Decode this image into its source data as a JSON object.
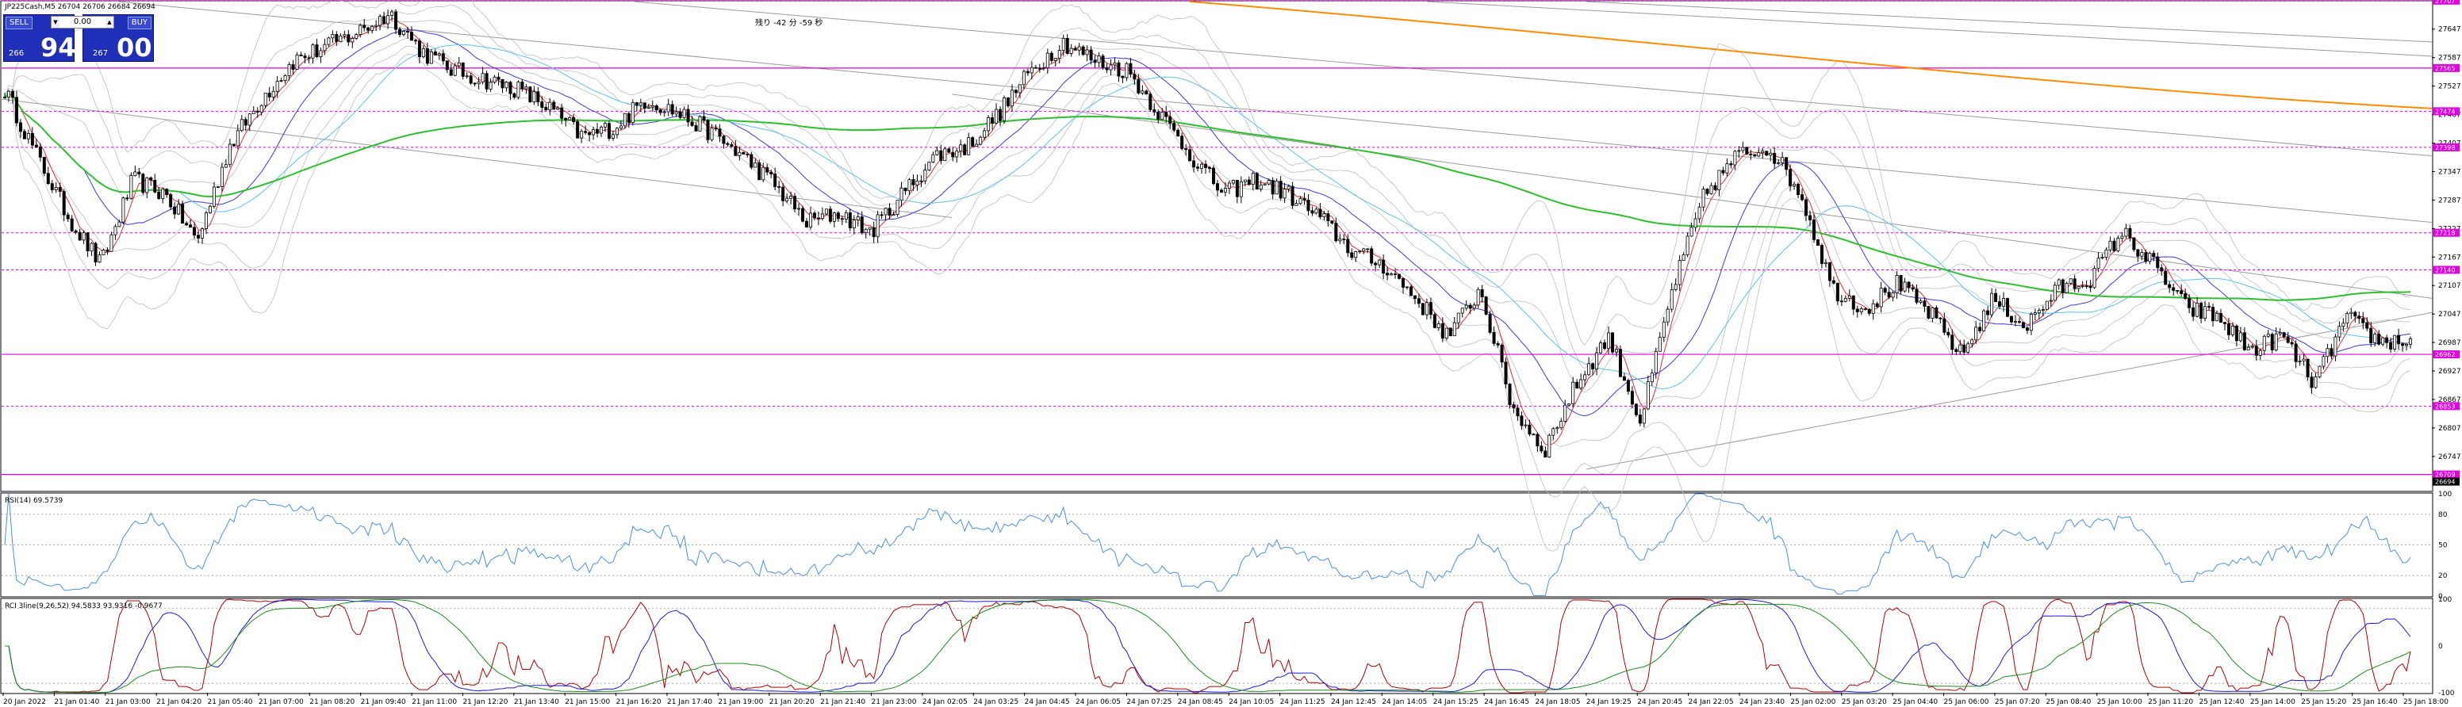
{
  "header": {
    "symbol_line": "JP225Cash,M5  26704 26706 26684 26694",
    "countdown": "残り -42 分 -59 秒"
  },
  "trade_panel": {
    "sell_label": "SELL",
    "buy_label": "BUY",
    "lot": "0.00",
    "sell_price_small": "266",
    "sell_price_big": "94",
    "buy_price_small": "267",
    "buy_price_big": "00"
  },
  "colors": {
    "candle": "#000000",
    "sma_green": "#2dbf2d",
    "sma_orange": "#ff8c00",
    "ma_blue": "#3a3ae0",
    "ma_cyan": "#5cc0f0",
    "ma_red": "#e03030",
    "bollinger": "#bdbdbd",
    "trend_lines": "#9a9a9a",
    "levels": "#e000e0",
    "rsi": "#4a90e0",
    "rci_red": "#b00000",
    "rci_blue": "#1a1ae0",
    "rci_green": "#1c8c1c"
  },
  "chart_data": [
    {
      "type": "candlestick",
      "title": "JP225Cash,M5  26704 26706 26684 26694",
      "y_ticks": [
        27647,
        27587,
        27527,
        27467,
        27407,
        27347,
        27287,
        27227,
        27167,
        27107,
        27047,
        26987,
        26927,
        26867,
        26807,
        26747
      ],
      "ylim": [
        26675,
        27705
      ],
      "x_ticks": [
        "20 Jan 2022",
        "21 Jan 01:40",
        "21 Jan 03:00",
        "21 Jan 04:20",
        "21 Jan 05:40",
        "21 Jan 07:00",
        "21 Jan 08:20",
        "21 Jan 09:40",
        "21 Jan 11:00",
        "21 Jan 12:20",
        "21 Jan 13:40",
        "21 Jan 15:00",
        "21 Jan 16:20",
        "21 Jan 17:40",
        "21 Jan 19:00",
        "21 Jan 20:20",
        "21 Jan 21:40",
        "21 Jan 23:00",
        "24 Jan 02:05",
        "24 Jan 03:25",
        "24 Jan 04:45",
        "24 Jan 06:05",
        "24 Jan 07:25",
        "24 Jan 08:45",
        "24 Jan 10:05",
        "24 Jan 11:25",
        "24 Jan 12:45",
        "24 Jan 14:05",
        "24 Jan 15:25",
        "24 Jan 16:45",
        "24 Jan 18:05",
        "24 Jan 19:25",
        "24 Jan 20:45",
        "24 Jan 22:05",
        "24 Jan 23:40",
        "25 Jan 02:00",
        "25 Jan 03:20",
        "25 Jan 04:40",
        "25 Jan 06:00",
        "25 Jan 07:20",
        "25 Jan 08:40",
        "25 Jan 10:00",
        "25 Jan 11:20",
        "25 Jan 12:40",
        "25 Jan 14:00",
        "25 Jan 15:20",
        "25 Jan 16:40",
        "25 Jan 18:00"
      ],
      "close_path_anchors": [
        27520,
        27380,
        27250,
        27150,
        27330,
        27300,
        27200,
        27400,
        27500,
        27580,
        27610,
        27640,
        27680,
        27600,
        27560,
        27540,
        27520,
        27480,
        27420,
        27440,
        27500,
        27470,
        27430,
        27380,
        27320,
        27240,
        27260,
        27220,
        27300,
        27380,
        27400,
        27470,
        27560,
        27620,
        27580,
        27560,
        27470,
        27380,
        27300,
        27330,
        27300,
        27250,
        27180,
        27150,
        27080,
        27000,
        27100,
        26850,
        26760,
        26900,
        27000,
        26820,
        27100,
        27300,
        27380,
        27400,
        27300,
        27100,
        27060,
        27110,
        27050,
        26960,
        27080,
        27020,
        27100,
        27120,
        27220,
        27150,
        27060,
        27040,
        26970,
        27000,
        26900,
        27040,
        26990,
        26990
      ],
      "level_lines": [
        {
          "value": 27707,
          "label": "27707",
          "style": "dotted"
        },
        {
          "value": 27565,
          "label": "27565",
          "style": "solid"
        },
        {
          "value": 27474,
          "label": "27474",
          "style": "dotted"
        },
        {
          "value": 27398,
          "label": "27398",
          "style": "dotted"
        },
        {
          "value": 27218,
          "label": "27218",
          "style": "dotted"
        },
        {
          "value": 27140,
          "label": "27140",
          "style": "dotted"
        },
        {
          "value": 26962,
          "label": "26962",
          "style": "solid"
        },
        {
          "value": 26853,
          "label": "26853",
          "style": "dotted"
        },
        {
          "value": 26709,
          "label": "26709",
          "style": "solid"
        },
        {
          "value": 26694,
          "label": "26694",
          "style": "current"
        }
      ]
    },
    {
      "type": "line",
      "title": "RSI(14) 69.5739",
      "y_ticks": [
        100,
        80,
        50,
        20,
        0
      ],
      "ylim": [
        0,
        100
      ],
      "series": [
        {
          "name": "RSI(14)",
          "last": 69.5739
        }
      ]
    },
    {
      "type": "line",
      "title": "RCI 3line(9,26,52) 94.5833 93.9316 -0.9677",
      "y_ticks": [
        100,
        0,
        -100
      ],
      "ylim": [
        -100,
        100
      ],
      "series": [
        {
          "name": "RCI 9",
          "last": 94.5833
        },
        {
          "name": "RCI 26",
          "last": 93.9316
        },
        {
          "name": "RCI 52",
          "last": -0.9677
        }
      ]
    }
  ]
}
